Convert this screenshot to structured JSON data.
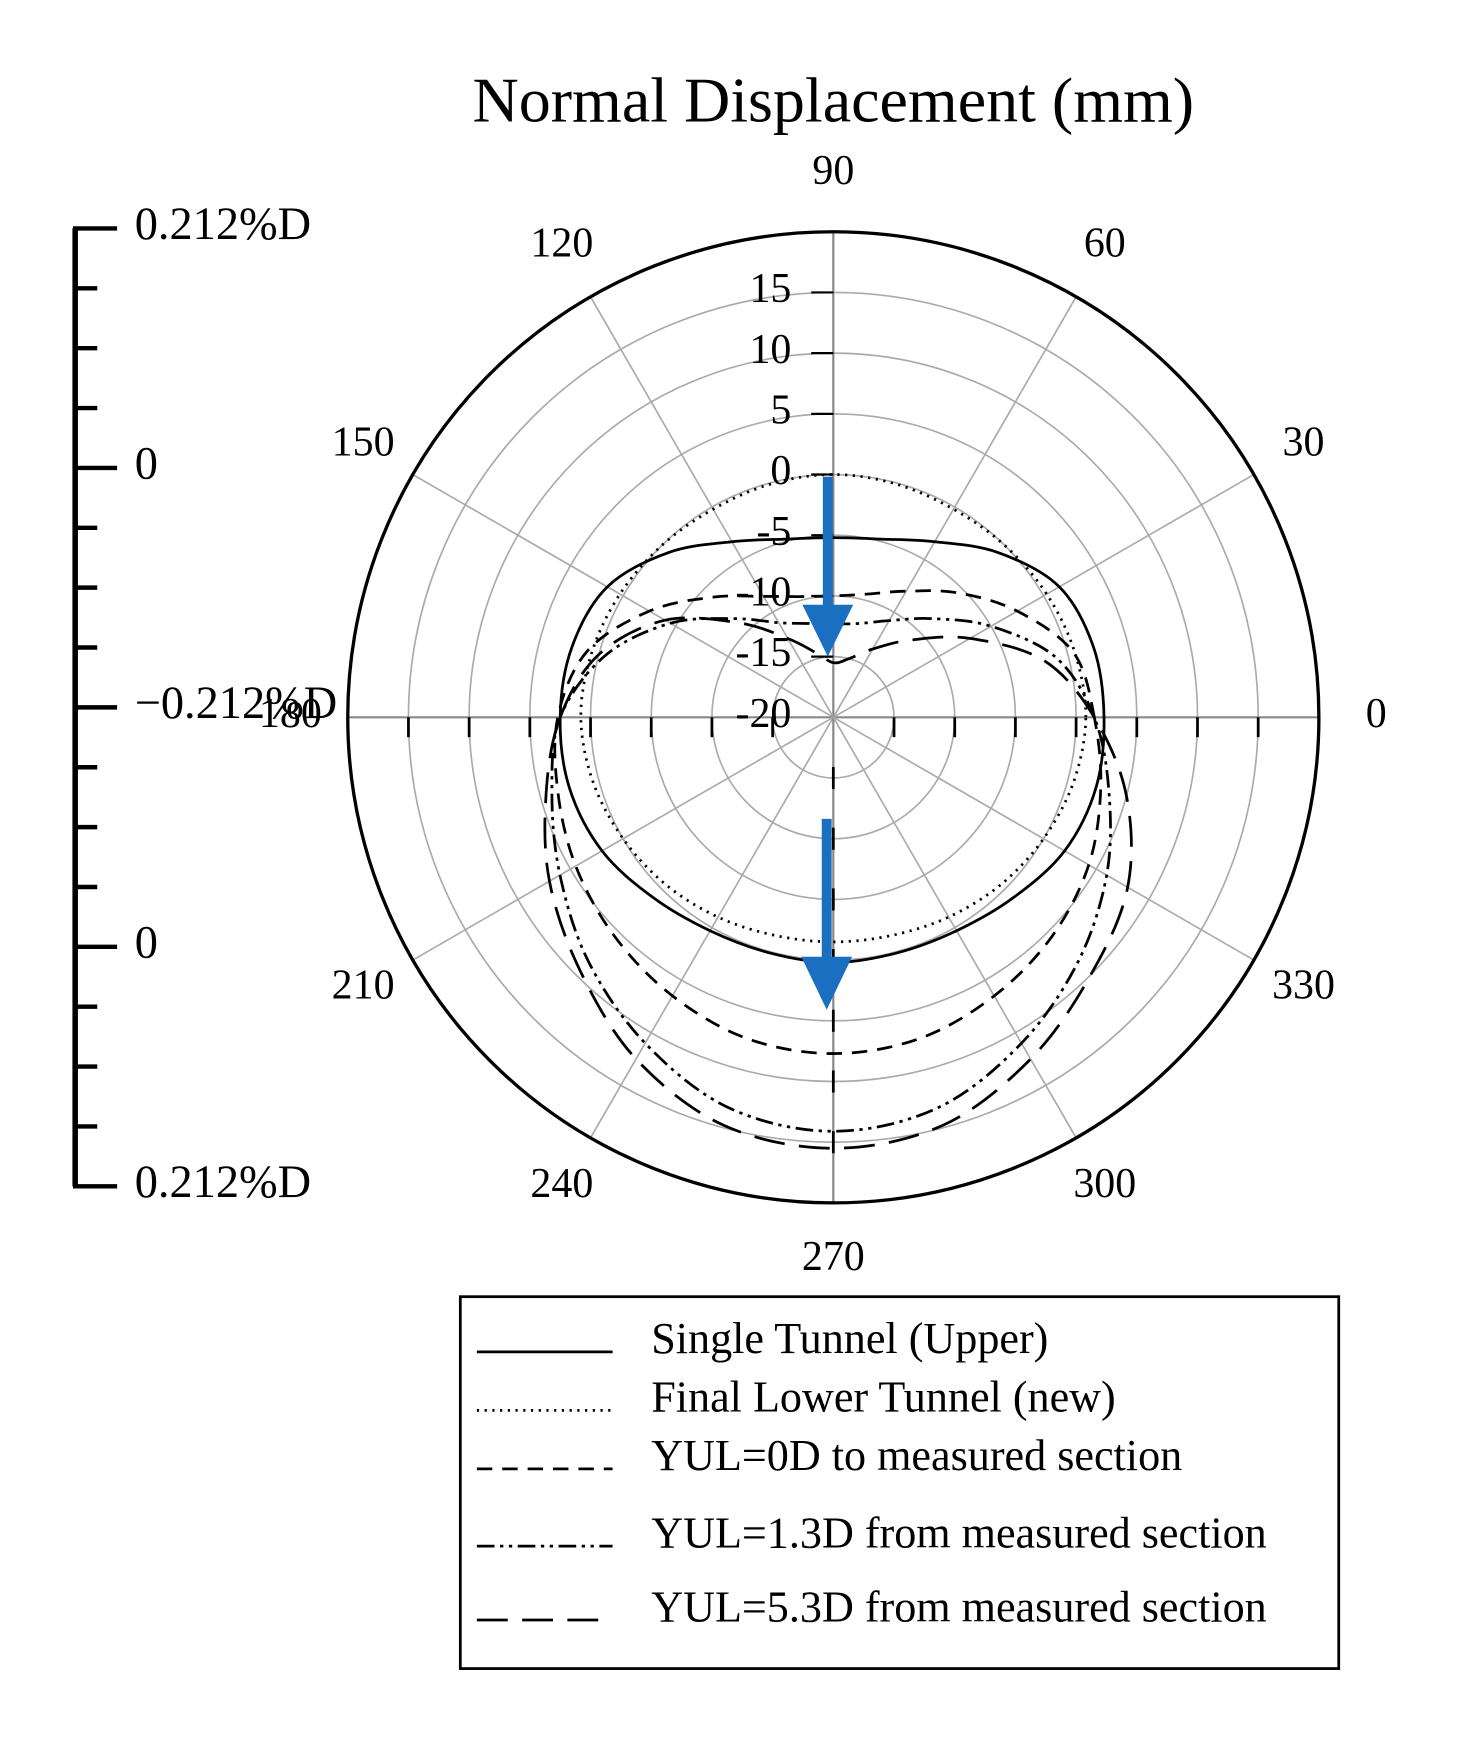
{
  "chart_data": {
    "type": "polar",
    "title": "Normal Displacement (mm)",
    "x": [
      0,
      15,
      30,
      45,
      60,
      75,
      90,
      105,
      120,
      135,
      150,
      165,
      180,
      195,
      210,
      225,
      240,
      255,
      270,
      285,
      300,
      315,
      330,
      345
    ],
    "rlim": [
      -20,
      20
    ],
    "rticks": [
      -20,
      -15,
      -10,
      -5,
      0,
      5,
      10,
      15
    ],
    "thetaticks": [
      0,
      30,
      60,
      90,
      120,
      150,
      180,
      210,
      240,
      270,
      300,
      330
    ],
    "grid": true,
    "series": [
      {
        "name": "Single Tunnel (Upper)",
        "color": "#000000",
        "style": "solid",
        "values": [
          2.3,
          2.2,
          1.5,
          -0.8,
          -3.3,
          -4.8,
          -5.2,
          -4.8,
          -3.3,
          -0.8,
          1.5,
          2.3,
          2.5,
          2.5,
          2.0,
          1.0,
          0.3,
          0.1,
          0.2,
          0.1,
          0.3,
          1.0,
          2.0,
          2.4
        ]
      },
      {
        "name": "Final Lower Tunnel (new)",
        "color": "#000000",
        "style": "dotted",
        "values": [
          0.8,
          0.6,
          0.3,
          0,
          -0.2,
          -0.1,
          0,
          -0.1,
          -0.2,
          0,
          0.3,
          0.6,
          0.8,
          0.5,
          0,
          -0.5,
          -1,
          -1.4,
          -1.5,
          -1.4,
          -1,
          -0.5,
          0,
          0.5
        ]
      },
      {
        "name": "YUL=0D  to measured section",
        "color": "#000000",
        "style": "dashed",
        "values": [
          1.5,
          0.5,
          -2.5,
          -5.5,
          -8,
          -9.5,
          -10,
          -9.7,
          -8.5,
          -6,
          -2.5,
          1,
          2.7,
          3.5,
          4.5,
          5.5,
          6.5,
          7.4,
          7.7,
          7.4,
          6.5,
          5.5,
          4.3,
          2.8
        ]
      },
      {
        "name": "YUL=1.3D  from measured section",
        "color": "#000000",
        "style": "dashdotdot",
        "values": [
          1.5,
          -1,
          -5,
          -8.5,
          -10.8,
          -12,
          -12.3,
          -12,
          -11,
          -8.5,
          -4.5,
          -0.5,
          2.5,
          4,
          6,
          8.5,
          11,
          13.3,
          14.1,
          13.3,
          11,
          8.5,
          6,
          3.5
        ]
      },
      {
        "name": "YUL=5.3D  from measured section",
        "color": "#000000",
        "style": "longdash",
        "values": [
          1.5,
          -2,
          -7,
          -11,
          -13.5,
          -15,
          -15.5,
          -14.5,
          -12.5,
          -9,
          -4,
          0,
          2.5,
          4.5,
          7,
          9.5,
          12.5,
          14.8,
          15.5,
          14.8,
          12.5,
          10,
          8,
          5
        ]
      }
    ],
    "scale_labels": [
      "0.212%D",
      "0",
      "−0.212%D",
      "0",
      "0.212%D"
    ]
  }
}
